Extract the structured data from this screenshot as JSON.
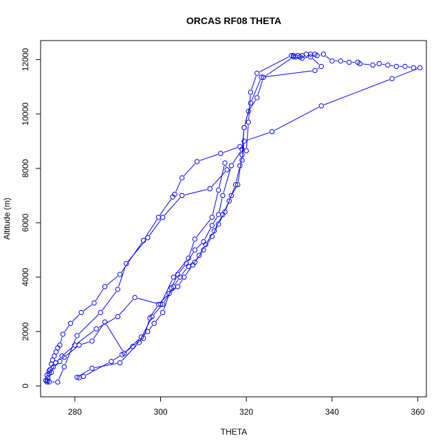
{
  "chart_data": {
    "type": "line",
    "title": "ORCAS RF08 THETA",
    "xlabel": "THETA",
    "ylabel": "Altitude (m)",
    "xlim": [
      272,
      362
    ],
    "ylim": [
      -400,
      12700
    ],
    "xticks": [
      280,
      300,
      320,
      340,
      360
    ],
    "yticks": [
      0,
      2000,
      4000,
      6000,
      8000,
      10000,
      12000
    ],
    "grid": false,
    "legend": "none",
    "series_color": "#0000ff",
    "series": [
      {
        "values": [
          [
            273.5,
            150
          ],
          [
            273.6,
            200
          ],
          [
            273.7,
            300
          ],
          [
            274.0,
            450
          ],
          [
            274.2,
            600
          ],
          [
            274.5,
            800
          ],
          [
            274.8,
            950
          ],
          [
            275.2,
            1100
          ],
          [
            275.6,
            1250
          ],
          [
            276.0,
            1400
          ],
          [
            276.5,
            1500
          ],
          [
            277.2,
            1900
          ],
          [
            279.0,
            2300
          ],
          [
            281.5,
            2700
          ],
          [
            284.5,
            3050
          ],
          [
            287.0,
            3650
          ],
          [
            290.5,
            4100
          ],
          [
            296.0,
            5350
          ],
          [
            299.5,
            6200
          ],
          [
            302.8,
            6950
          ],
          [
            303.3,
            7050
          ],
          [
            305.0,
            7650
          ],
          [
            308.5,
            8250
          ],
          [
            314.0,
            8550
          ],
          [
            318.5,
            8800
          ],
          [
            320.0,
            8650
          ],
          [
            320.5,
            9700
          ],
          [
            321.0,
            10800
          ],
          [
            322.5,
            11500
          ],
          [
            330.5,
            12150
          ],
          [
            331.0,
            12150
          ],
          [
            331.5,
            12100
          ],
          [
            332.0,
            12150
          ],
          [
            332.5,
            12100
          ],
          [
            333.0,
            12150
          ],
          [
            334.0,
            12200
          ],
          [
            335.0,
            12200
          ],
          [
            336.0,
            12200
          ],
          [
            336.5,
            12150
          ],
          [
            338.0,
            12200
          ],
          [
            340.0,
            11950
          ],
          [
            342.0,
            11950
          ],
          [
            344.0,
            11900
          ],
          [
            346.0,
            11900
          ],
          [
            346.5,
            11850
          ],
          [
            349.5,
            11800
          ],
          [
            351.0,
            11850
          ],
          [
            353.0,
            11800
          ],
          [
            355.0,
            11750
          ],
          [
            357.0,
            11750
          ],
          [
            359.0,
            11700
          ],
          [
            360.5,
            11700
          ],
          [
            354.0,
            11300
          ],
          [
            337.5,
            10300
          ],
          [
            326.0,
            9350
          ],
          [
            319.5,
            9000
          ],
          [
            319.0,
            8300
          ],
          [
            318.5,
            8100
          ],
          [
            317.5,
            7400
          ],
          [
            316.0,
            6800
          ],
          [
            314.5,
            6300
          ],
          [
            312.5,
            5700
          ],
          [
            310.5,
            5200
          ],
          [
            309.0,
            4800
          ],
          [
            307.5,
            4450
          ],
          [
            305.5,
            4000
          ],
          [
            304.0,
            3650
          ],
          [
            302.0,
            3400
          ],
          [
            299.5,
            3000
          ],
          [
            297.5,
            2500
          ],
          [
            296.0,
            1750
          ],
          [
            293.5,
            1450
          ],
          [
            291.0,
            1150
          ],
          [
            288.5,
            900
          ],
          [
            282.0,
            350
          ],
          [
            281.0,
            300
          ],
          [
            280.5,
            320
          ],
          [
            284.0,
            650
          ],
          [
            290.5,
            850
          ],
          [
            295.0,
            1600
          ],
          [
            298.0,
            2550
          ],
          [
            300.5,
            3000
          ],
          [
            303.0,
            3650
          ],
          [
            304.5,
            4000
          ],
          [
            306.5,
            4400
          ],
          [
            308.0,
            4550
          ],
          [
            310.0,
            5000
          ],
          [
            312.0,
            5500
          ],
          [
            313.5,
            5950
          ],
          [
            315.0,
            6400
          ],
          [
            316.5,
            7000
          ],
          [
            318.0,
            7400
          ],
          [
            319.0,
            8500
          ],
          [
            319.5,
            9500
          ],
          [
            320.5,
            10100
          ],
          [
            322.5,
            10600
          ],
          [
            324.0,
            11350
          ],
          [
            331.0,
            12100
          ],
          [
            333.0,
            12050
          ],
          [
            335.0,
            12100
          ],
          [
            337.5,
            11750
          ],
          [
            336.0,
            11600
          ],
          [
            323.5,
            11350
          ],
          [
            321.0,
            10400
          ],
          [
            319.5,
            9500
          ],
          [
            319.0,
            8700
          ],
          [
            316.5,
            8100
          ],
          [
            314.5,
            7000
          ],
          [
            313.5,
            6300
          ],
          [
            312.0,
            5900
          ],
          [
            310.0,
            5300
          ],
          [
            308.0,
            5000
          ],
          [
            306.0,
            4500
          ],
          [
            304.0,
            4100
          ],
          [
            302.5,
            3600
          ],
          [
            300.5,
            2700
          ],
          [
            298.5,
            2300
          ],
          [
            297.0,
            2000
          ],
          [
            295.5,
            1800
          ],
          [
            291.5,
            1200
          ],
          [
            287.0,
            2350
          ],
          [
            284.0,
            1650
          ],
          [
            281.0,
            1500
          ],
          [
            277.5,
            1050
          ],
          [
            276.5,
            900
          ],
          [
            275.0,
            700
          ],
          [
            274.0,
            550
          ],
          [
            273.5,
            400
          ],
          [
            273.2,
            200
          ],
          [
            274.0,
            150
          ],
          [
            276.0,
            140
          ],
          [
            277.5,
            700
          ],
          [
            280.5,
            1850
          ],
          [
            286.0,
            2700
          ],
          [
            290.0,
            3550
          ],
          [
            292.0,
            4500
          ],
          [
            297.0,
            5450
          ],
          [
            300.5,
            6200
          ],
          [
            305.0,
            7000
          ],
          [
            311.5,
            7250
          ],
          [
            315.5,
            7950
          ],
          [
            315.0,
            8200
          ],
          [
            313.5,
            7200
          ],
          [
            312.0,
            6200
          ],
          [
            308.0,
            5400
          ],
          [
            306.5,
            4700
          ],
          [
            303.0,
            4000
          ],
          [
            300.0,
            3000
          ],
          [
            294.0,
            3250
          ],
          [
            290.0,
            2550
          ],
          [
            285.0,
            2100
          ],
          [
            280.0,
            1500
          ],
          [
            277.0,
            1100
          ],
          [
            275.5,
            850
          ],
          [
            274.5,
            500
          ]
        ]
      }
    ]
  }
}
